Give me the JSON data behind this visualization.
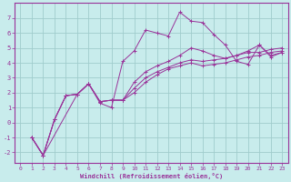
{
  "xlabel": "Windchill (Refroidissement éolien,°C)",
  "bg_color": "#c8ecec",
  "grid_color": "#a0cccc",
  "line_color": "#993399",
  "spine_color": "#993399",
  "xlim": [
    -0.5,
    23.5
  ],
  "ylim": [
    -2.7,
    8.0
  ],
  "xticks": [
    0,
    1,
    2,
    3,
    4,
    5,
    6,
    7,
    8,
    9,
    10,
    11,
    12,
    13,
    14,
    15,
    16,
    17,
    18,
    19,
    20,
    21,
    22,
    23
  ],
  "yticks": [
    -2,
    -1,
    0,
    1,
    2,
    3,
    4,
    5,
    6,
    7
  ],
  "lines": [
    {
      "x": [
        1,
        2,
        3,
        4,
        5,
        6,
        7,
        8,
        9,
        10,
        11,
        12,
        13,
        14,
        15,
        16,
        17,
        18,
        19,
        20,
        21,
        22,
        23
      ],
      "y": [
        -1.0,
        -2.2,
        0.2,
        1.8,
        1.9,
        2.6,
        1.4,
        1.5,
        1.5,
        2.0,
        2.7,
        3.2,
        3.6,
        3.8,
        4.0,
        3.8,
        3.9,
        4.0,
        4.2,
        4.4,
        4.5,
        4.7,
        4.8
      ]
    },
    {
      "x": [
        1,
        2,
        3,
        4,
        5,
        6,
        7,
        8,
        9,
        10,
        11,
        12,
        13,
        14,
        15,
        16,
        17,
        18,
        19,
        20,
        21,
        22,
        23
      ],
      "y": [
        -1.0,
        -2.2,
        0.2,
        1.8,
        1.9,
        2.6,
        1.4,
        1.5,
        1.5,
        2.3,
        3.0,
        3.4,
        3.7,
        4.0,
        4.2,
        4.1,
        4.2,
        4.3,
        4.5,
        4.7,
        4.7,
        4.9,
        5.0
      ]
    },
    {
      "x": [
        1,
        2,
        3,
        4,
        5,
        6,
        7,
        8,
        9,
        10,
        11,
        12,
        13,
        14,
        15,
        16,
        17,
        18,
        19,
        20,
        21,
        22,
        23
      ],
      "y": [
        -1.0,
        -2.2,
        0.2,
        1.8,
        1.9,
        2.6,
        1.4,
        1.5,
        1.5,
        2.7,
        3.4,
        3.8,
        4.1,
        4.5,
        5.0,
        4.8,
        4.5,
        4.3,
        4.5,
        4.8,
        5.2,
        4.5,
        4.7
      ]
    },
    {
      "x": [
        1,
        2,
        5,
        6,
        7,
        8,
        9,
        10,
        11,
        12,
        13,
        14,
        15,
        16,
        17,
        18,
        19,
        20,
        21,
        22,
        23
      ],
      "y": [
        -1.0,
        -2.2,
        1.9,
        2.6,
        1.3,
        1.0,
        4.1,
        4.8,
        6.2,
        6.0,
        5.8,
        7.4,
        6.8,
        6.7,
        5.9,
        5.2,
        4.1,
        3.9,
        5.2,
        4.4,
        4.7
      ]
    }
  ]
}
